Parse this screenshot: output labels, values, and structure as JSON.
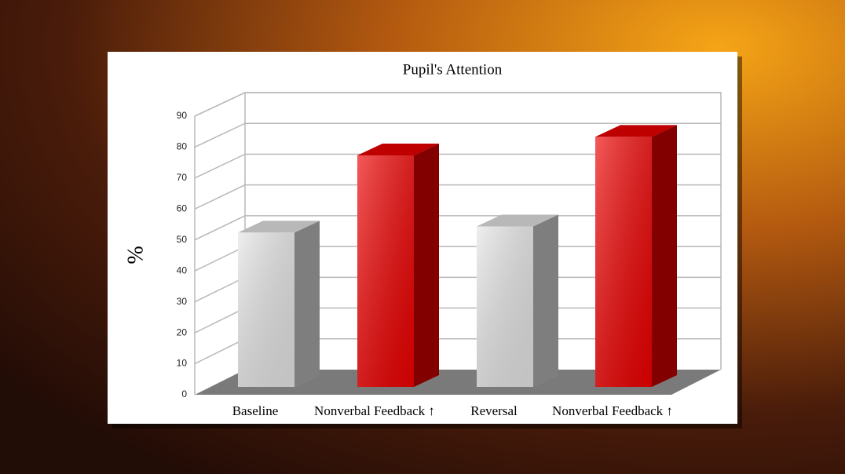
{
  "chart_data": {
    "type": "bar3d",
    "title": "Pupil's Attention",
    "y_label": "%",
    "categories": [
      "Baseline",
      "Nonverbal Feedback ↑",
      "Reversal",
      "Nonverbal Feedback ↑"
    ],
    "values": [
      50,
      75,
      52,
      81
    ],
    "colors": [
      "#e6e6e6",
      "#ee0000",
      "#e6e6e6",
      "#ee0000"
    ],
    "ylim": [
      0,
      90
    ],
    "yticks": [
      0,
      10,
      20,
      30,
      40,
      50,
      60,
      70,
      80,
      90
    ],
    "grid": true
  }
}
